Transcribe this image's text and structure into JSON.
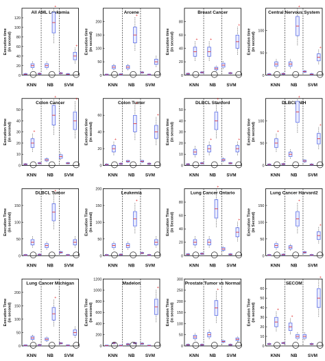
{
  "chart_data": [
    {
      "type": "box",
      "title": "All AML Leukemia",
      "ylabel": "Execution time (in second)",
      "ylim": [
        0,
        140
      ],
      "yticks": [
        0,
        20,
        40,
        60,
        80,
        100,
        120
      ],
      "groups": [
        "KNN",
        "NB",
        "SVM"
      ],
      "series": [
        {
          "name": "",
          "values": [
            2,
            20,
            3,
            20,
            110,
            4,
            2,
            40
          ]
        }
      ]
    },
    {
      "type": "box",
      "title": "Arcene",
      "ylabel": "Execution time (in second)",
      "ylim": [
        0,
        250
      ],
      "yticks": [
        0,
        50,
        100,
        150,
        200
      ],
      "groups": [
        "KNN",
        "NB",
        "SVM"
      ],
      "series": [
        {
          "name": "",
          "values": [
            2,
            30,
            3,
            30,
            150,
            10,
            2,
            50
          ]
        }
      ]
    },
    {
      "type": "box",
      "title": "Breast Cancer",
      "ylabel": "Execution time (in second)",
      "ylim": [
        0,
        100
      ],
      "yticks": [
        0,
        20,
        40,
        60,
        80
      ],
      "groups": [
        "KNN",
        "NB",
        "SVM"
      ],
      "series": [
        {
          "name": "",
          "values": [
            2,
            35,
            4,
            35,
            10,
            15,
            3,
            50
          ]
        }
      ]
    },
    {
      "type": "box",
      "title": "Central Nervous System",
      "ylabel": "Execution time (in second)",
      "ylim": [
        0,
        150
      ],
      "yticks": [
        0,
        50,
        100
      ],
      "groups": [
        "KNN",
        "NB",
        "SVM"
      ],
      "series": [
        {
          "name": "",
          "values": [
            2,
            25,
            3,
            25,
            110,
            8,
            2,
            40
          ]
        }
      ]
    },
    {
      "type": "box",
      "title": "Colon Cancer",
      "ylabel": "Execution time (in second)",
      "ylim": [
        0,
        60
      ],
      "yticks": [
        0,
        10,
        20,
        30,
        40,
        50
      ],
      "groups": [
        "KNN",
        "NB",
        "SVM"
      ],
      "series": [
        {
          "name": "",
          "values": [
            1,
            20,
            2,
            5,
            45,
            8,
            2,
            40
          ]
        }
      ]
    },
    {
      "type": "box",
      "title": "Colon Tumer",
      "ylabel": "Execution time (in second)",
      "ylim": [
        0,
        80
      ],
      "yticks": [
        0,
        20,
        40,
        60
      ],
      "groups": [
        "KNN",
        "NB",
        "SVM"
      ],
      "series": [
        {
          "name": "",
          "values": [
            1,
            20,
            2,
            5,
            50,
            5,
            2,
            40
          ]
        }
      ]
    },
    {
      "type": "box",
      "title": "DLBCL Stanford",
      "ylabel": "Execution time (in second)",
      "ylim": [
        0,
        60
      ],
      "yticks": [
        0,
        10,
        20,
        30,
        40,
        50
      ],
      "groups": [
        "KNN",
        "NB",
        "SVM"
      ],
      "series": [
        {
          "name": "",
          "values": [
            1,
            12,
            2,
            15,
            40,
            5,
            2,
            15
          ]
        }
      ]
    },
    {
      "type": "box",
      "title": "DLBCL-NIH",
      "ylabel": "Execution time (in second)",
      "ylim": [
        0,
        150
      ],
      "yticks": [
        0,
        50,
        100
      ],
      "groups": [
        "KNN",
        "NB",
        "SVM"
      ],
      "series": [
        {
          "name": "",
          "values": [
            2,
            50,
            3,
            25,
            120,
            10,
            2,
            60
          ]
        }
      ]
    },
    {
      "type": "box",
      "title": "DLBCL Tumor",
      "ylabel": "Execution Time (in second)",
      "ylim": [
        0,
        200
      ],
      "yticks": [
        0,
        50,
        100,
        150
      ],
      "groups": [
        "KNN",
        "NB",
        "SVM"
      ],
      "series": [
        {
          "name": "",
          "values": [
            2,
            40,
            3,
            30,
            130,
            10,
            2,
            40
          ]
        }
      ]
    },
    {
      "type": "box",
      "title": "Leukemia",
      "ylabel": "Execution Time (in second)",
      "ylim": [
        0,
        200
      ],
      "yticks": [
        0,
        50,
        100,
        150,
        200
      ],
      "groups": [
        "KNN",
        "NB",
        "SVM"
      ],
      "series": [
        {
          "name": "",
          "values": [
            2,
            30,
            3,
            30,
            110,
            8,
            2,
            40
          ]
        }
      ]
    },
    {
      "type": "box",
      "title": "Lung Cancer Ontario",
      "ylabel": "Execution Time (in Second)",
      "ylim": [
        0,
        100
      ],
      "yticks": [
        0,
        20,
        40,
        60,
        80
      ],
      "groups": [
        "KNN",
        "NB",
        "SVM"
      ],
      "series": [
        {
          "name": "",
          "values": [
            2,
            20,
            3,
            20,
            70,
            10,
            2,
            35
          ]
        }
      ]
    },
    {
      "type": "box",
      "title": "Lung Cancer Harvard2",
      "ylabel": "Execution Time (in Second)",
      "ylim": [
        0,
        200
      ],
      "yticks": [
        0,
        50,
        100,
        150
      ],
      "groups": [
        "KNN",
        "NB",
        "SVM"
      ],
      "series": [
        {
          "name": "",
          "values": [
            2,
            30,
            3,
            25,
            110,
            10,
            2,
            60
          ]
        }
      ]
    },
    {
      "type": "box",
      "title": "Lung Cancer Michigan",
      "ylabel": "Execution Time (in second)",
      "ylim": [
        0,
        250
      ],
      "yticks": [
        0,
        50,
        100,
        150,
        200
      ],
      "groups": [
        "KNN",
        "NB",
        "SVM"
      ],
      "series": [
        {
          "name": "",
          "values": [
            2,
            30,
            3,
            25,
            120,
            10,
            2,
            50
          ]
        }
      ]
    },
    {
      "type": "box",
      "title": "Madelon",
      "ylabel": "Execution Time (in second)",
      "ylim": [
        0,
        1200
      ],
      "yticks": [
        0,
        200,
        400,
        600,
        800,
        1000,
        1200
      ],
      "groups": [
        "KNN",
        "NB",
        "SVM"
      ],
      "series": [
        {
          "name": "",
          "values": [
            5,
            50,
            5,
            30,
            50,
            40,
            5,
            700
          ]
        }
      ]
    },
    {
      "type": "box",
      "title": "Prostate Tumor vs Normal",
      "ylabel": "Execution Time (in second)",
      "ylim": [
        0,
        300
      ],
      "yticks": [
        0,
        50,
        100,
        150,
        200,
        250,
        300
      ],
      "groups": [
        "KNN",
        "NB",
        "SVM"
      ],
      "series": [
        {
          "name": "",
          "values": [
            5,
            40,
            5,
            50,
            170,
            20,
            5,
            30
          ]
        }
      ]
    },
    {
      "type": "box",
      "title": "SECOM",
      "ylabel": "Execution Time (in second)",
      "ylim": [
        0,
        70
      ],
      "yticks": [
        0,
        10,
        20,
        30,
        40,
        50,
        60
      ],
      "groups": [
        "KNN",
        "NB",
        "SVM"
      ],
      "series": [
        {
          "name": "",
          "values": [
            2,
            25,
            3,
            20,
            10,
            10,
            2,
            50
          ]
        }
      ]
    }
  ],
  "colors": {
    "box": "#5b6ee8",
    "box_fill": "#e9ebfd",
    "median": "#e02020",
    "outlier": "#e02020",
    "circle": "#222222",
    "axis": "#000000",
    "separator": "#000000"
  }
}
